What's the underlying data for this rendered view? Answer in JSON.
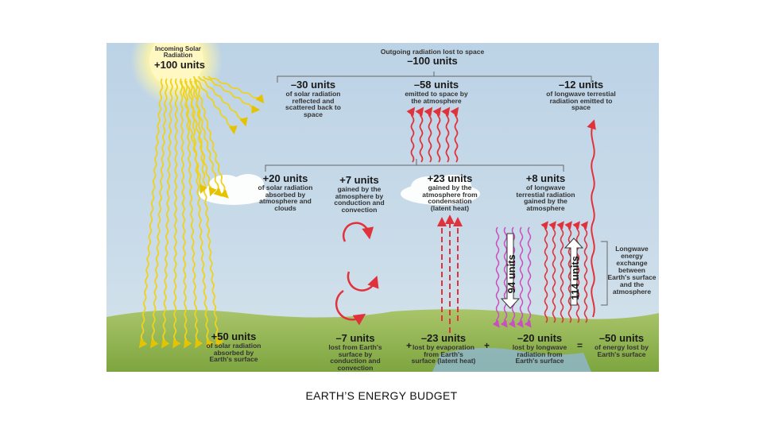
{
  "caption": "EARTH’S ENERGY BUDGET",
  "incoming": {
    "title": "Incoming Solar Radiation",
    "value": "+100 units"
  },
  "outgoing": {
    "title": "Outgoing radiation lost to space",
    "value": "–100 units"
  },
  "space_losses": [
    {
      "value": "–30 units",
      "desc": "of solar radiation reflected and scattered back to space"
    },
    {
      "value": "–58 units",
      "desc": "emitted to space by the atmosphere"
    },
    {
      "value": "–12 units",
      "desc": "of longwave terrestial radiation emitted to space"
    }
  ],
  "atmosphere_gains": [
    {
      "value": "+20 units",
      "desc": "of solar radiation absorbed by atmosphere and clouds"
    },
    {
      "value": "+7 units",
      "desc": "gained by the atmosphere by conduction and convection"
    },
    {
      "value": "+23 units",
      "desc": "gained by the atmosphere from condensation (latent heat)"
    },
    {
      "value": "+8 units",
      "desc": "of longwave terrestial radiation gained by the atmosphere"
    }
  ],
  "exchange": {
    "down": "94 units",
    "up": "114 units",
    "desc": "Longwave energy exchange between Earth's surface and the atmosphere"
  },
  "surface": [
    {
      "value": "+50 units",
      "desc": "of solar radiation absorbed by Earth's surface"
    },
    {
      "value": "–7 units",
      "desc": "lost from Earth's surface by conduction and convection"
    },
    {
      "value": "–23 units",
      "desc": "lost by evaporation from Earth's surface (latent heat)"
    },
    {
      "value": "–20 units",
      "desc": "lost by longwave radiation from Earth's surface"
    },
    {
      "value": "–50 units",
      "desc": "of energy lost by Earth's surface"
    }
  ],
  "signs": {
    "plus": "+",
    "equals": "="
  }
}
